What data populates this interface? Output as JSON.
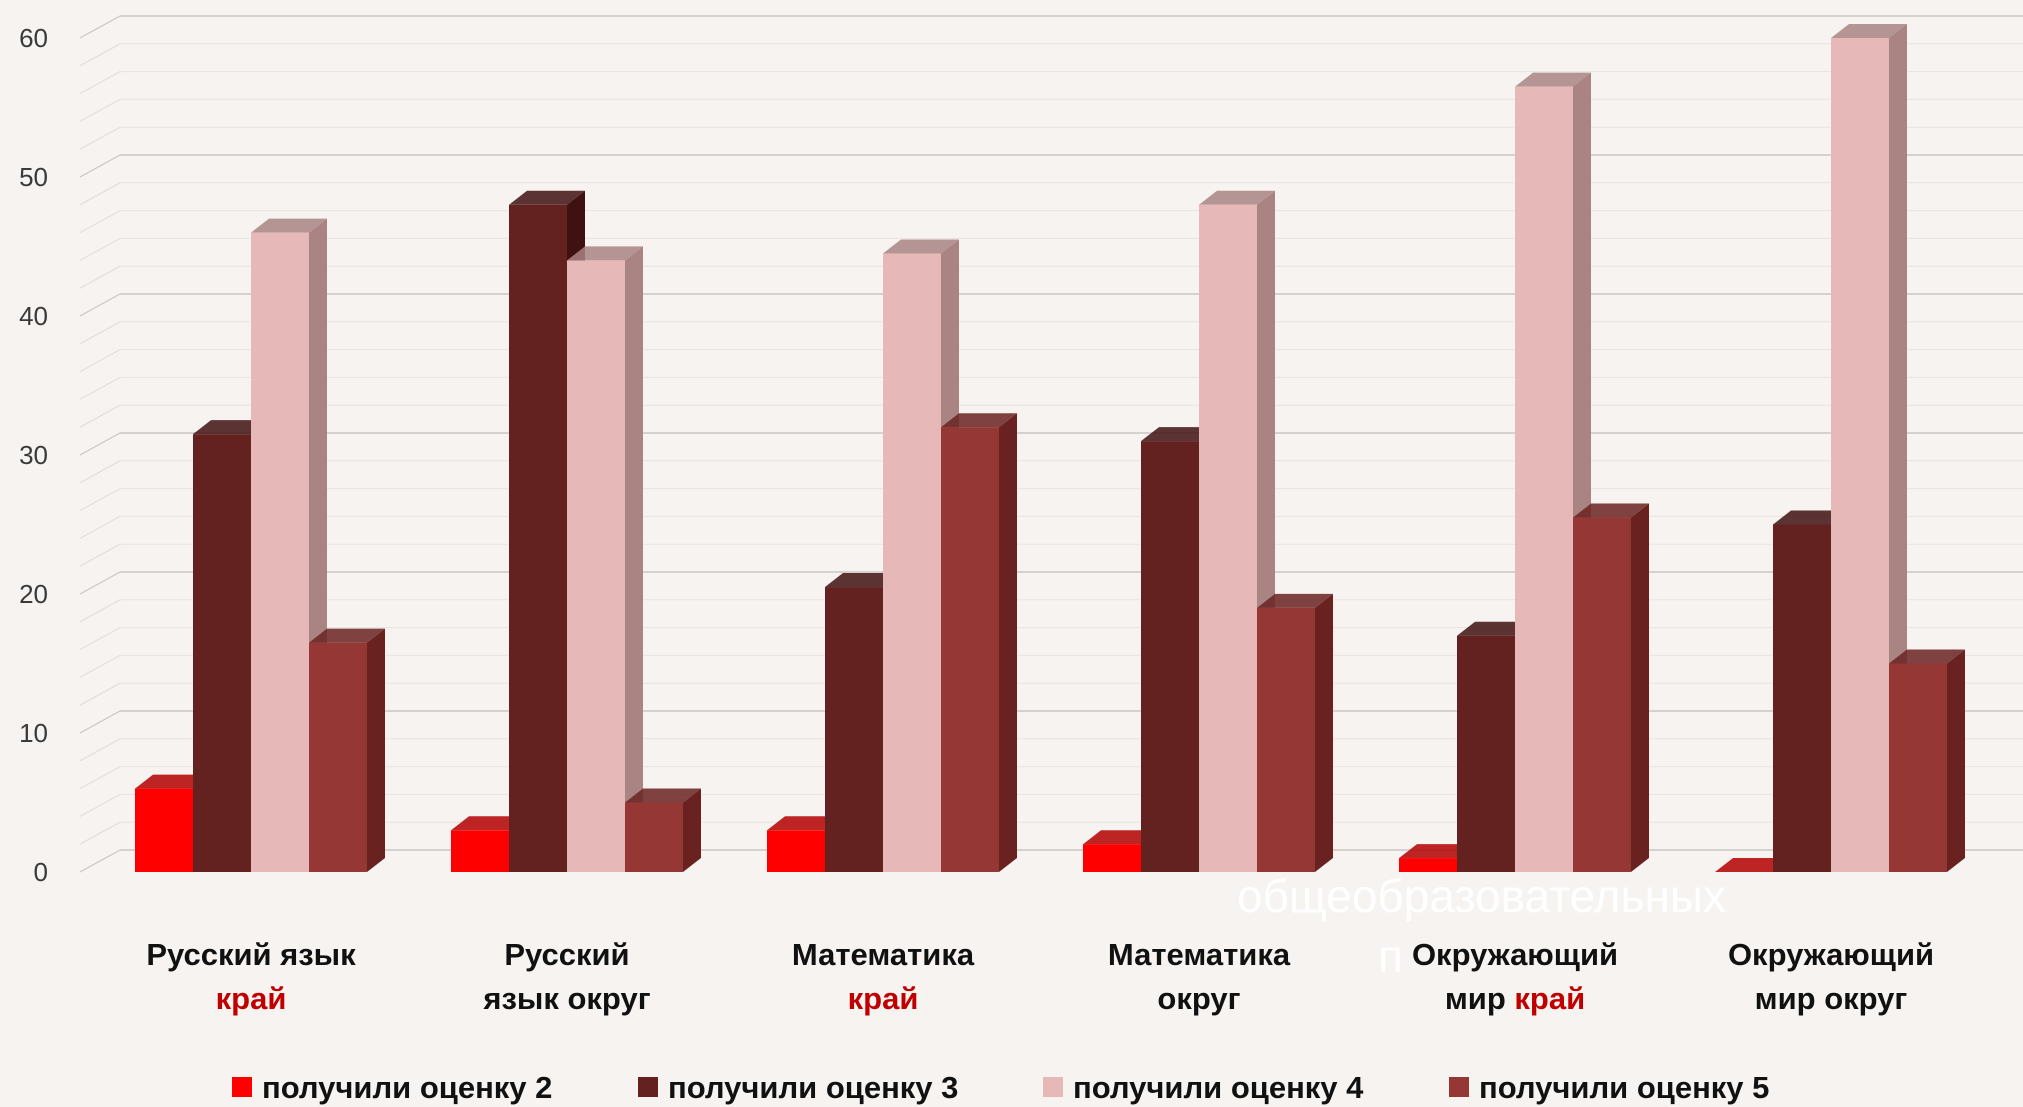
{
  "chart_data": {
    "type": "bar",
    "categories": [
      [
        "Русский язык",
        "край"
      ],
      [
        "Русский",
        "язык округ"
      ],
      [
        "Математика",
        "край"
      ],
      [
        "Математика",
        "округ"
      ],
      [
        "Окружающий",
        "мир край"
      ],
      [
        "Окружающий",
        "мир округ"
      ]
    ],
    "category_highlight": [
      "край",
      "",
      "край",
      "",
      "край",
      ""
    ],
    "series": [
      {
        "name": "получили оценку 2",
        "color": "#ff0000",
        "side_color": "#b30000",
        "values": [
          6,
          3,
          3,
          2,
          1,
          0
        ]
      },
      {
        "name": "получили оценку 3",
        "color": "#632220",
        "side_color": "#3f1110",
        "values": [
          31.5,
          48,
          20.5,
          31,
          17,
          25
        ]
      },
      {
        "name": "получили оценку 4",
        "color": "#e6b9b8",
        "side_color": "#a98483",
        "values": [
          46,
          44,
          44.5,
          48,
          56.5,
          60
        ]
      },
      {
        "name": "получили оценку 5",
        "color": "#953735",
        "side_color": "#6a2221",
        "values": [
          16.5,
          5,
          32,
          19,
          25.5,
          15
        ]
      }
    ],
    "yticks": [
      0,
      10,
      20,
      30,
      40,
      50,
      60
    ],
    "ylim": [
      0,
      60
    ],
    "grid": true,
    "legend_position": "bottom",
    "highlight_color": "#c00000"
  },
  "overlay_text": [
    "общеобразовательных",
    "п"
  ]
}
